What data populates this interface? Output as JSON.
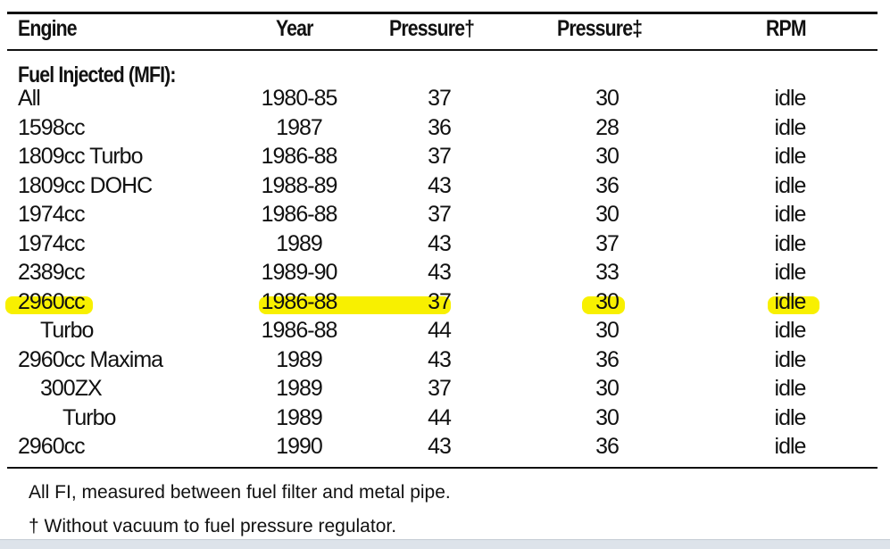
{
  "headers": [
    "Engine",
    "Year",
    "Pressure†",
    "Pressure‡",
    "RPM"
  ],
  "section": "Fuel Injected (MFI):",
  "rows": [
    {
      "engine": "All",
      "year": "1980-85",
      "p1": "37",
      "p2": "30",
      "rpm": "idle",
      "indent": 0
    },
    {
      "engine": "1598cc",
      "year": "1987",
      "p1": "36",
      "p2": "28",
      "rpm": "idle",
      "indent": 0
    },
    {
      "engine": "1809cc Turbo",
      "year": "1986-88",
      "p1": "37",
      "p2": "30",
      "rpm": "idle",
      "indent": 0
    },
    {
      "engine": "1809cc DOHC",
      "year": "1988-89",
      "p1": "43",
      "p2": "36",
      "rpm": "idle",
      "indent": 0
    },
    {
      "engine": "1974cc",
      "year": "1986-88",
      "p1": "37",
      "p2": "30",
      "rpm": "idle",
      "indent": 0
    },
    {
      "engine": "1974cc",
      "year": "1989",
      "p1": "43",
      "p2": "37",
      "rpm": "idle",
      "indent": 0
    },
    {
      "engine": "2389cc",
      "year": "1989-90",
      "p1": "43",
      "p2": "33",
      "rpm": "idle",
      "indent": 0
    },
    {
      "engine": "2960cc",
      "year": "1986-88",
      "p1": "37",
      "p2": "30",
      "rpm": "idle",
      "indent": 0,
      "highlighted": true
    },
    {
      "engine": "Turbo",
      "year": "1986-88",
      "p1": "44",
      "p2": "30",
      "rpm": "idle",
      "indent": 1
    },
    {
      "engine": "2960cc Maxima",
      "year": "1989",
      "p1": "43",
      "p2": "36",
      "rpm": "idle",
      "indent": 0
    },
    {
      "engine": "300ZX",
      "year": "1989",
      "p1": "37",
      "p2": "30",
      "rpm": "idle",
      "indent": 1
    },
    {
      "engine": "Turbo",
      "year": "1989",
      "p1": "44",
      "p2": "30",
      "rpm": "idle",
      "indent": 2
    },
    {
      "engine": "2960cc",
      "year": "1990",
      "p1": "43",
      "p2": "36",
      "rpm": "idle",
      "indent": 0
    }
  ],
  "notes": [
    "All FI, measured between fuel filter and metal pipe.",
    "† Without vacuum to fuel pressure regulator."
  ],
  "highlight_color": "#f8f000"
}
